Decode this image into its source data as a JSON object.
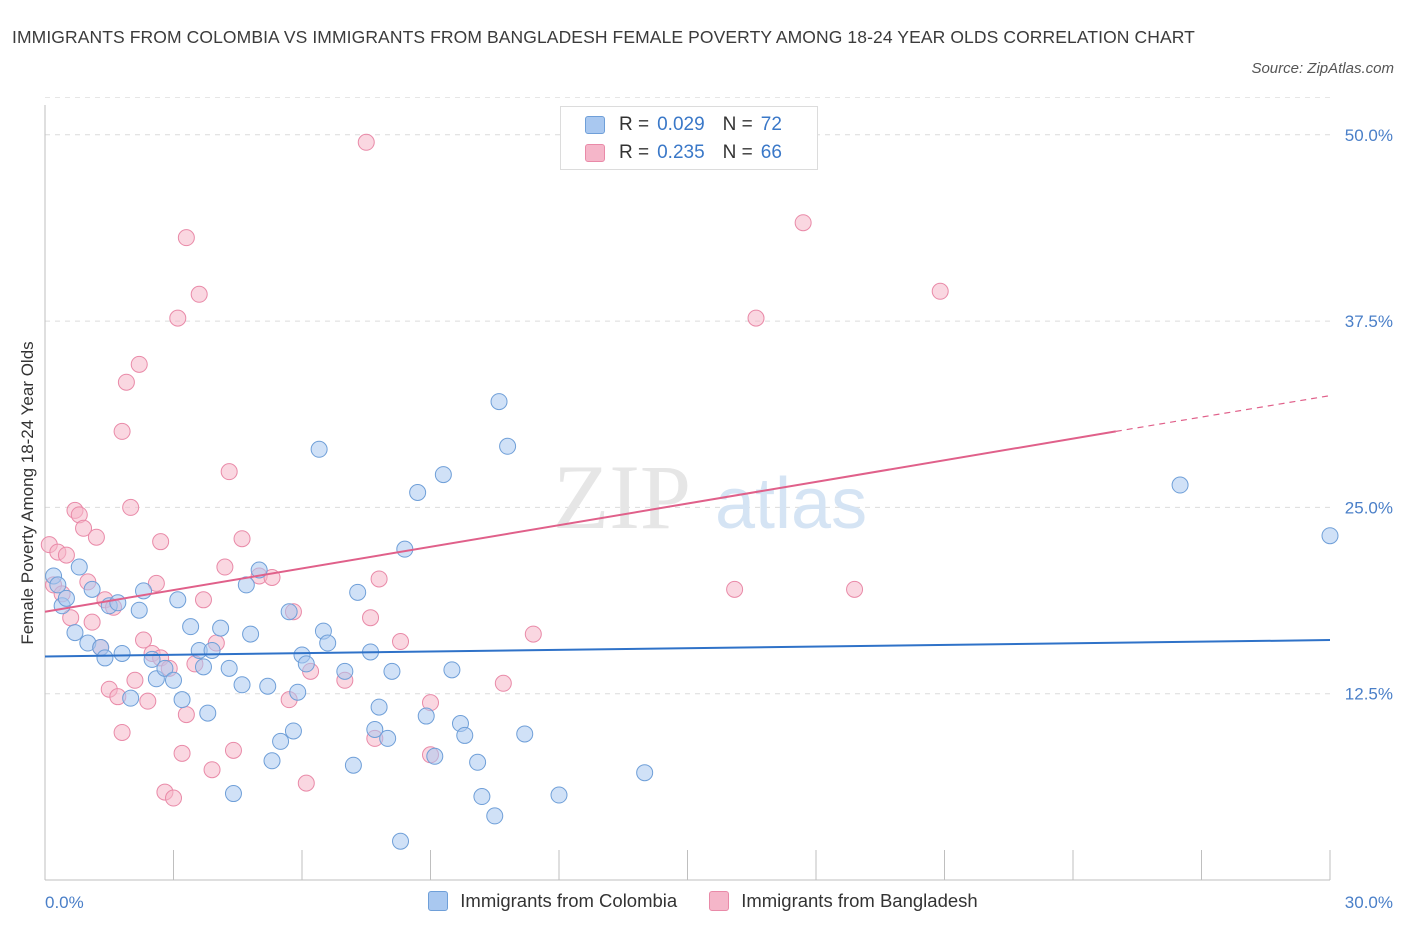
{
  "header": {
    "title": "IMMIGRANTS FROM COLOMBIA VS IMMIGRANTS FROM BANGLADESH FEMALE POVERTY AMONG 18-24 YEAR OLDS CORRELATION CHART",
    "source": "Source: ZipAtlas.com"
  },
  "watermark": {
    "zip": "ZIP",
    "atlas": "atlas"
  },
  "legend_top": {
    "rows": [
      {
        "r_label": "R =",
        "r_value": "0.029",
        "n_label": "N =",
        "n_value": "72",
        "color": "#a9c8f0"
      },
      {
        "r_label": "R =",
        "r_value": "0.235",
        "n_label": "N =",
        "n_value": "66",
        "color": "#f5b6c9"
      }
    ]
  },
  "bottom_legend": {
    "items": [
      {
        "label": "Immigrants from Colombia",
        "color": "#a9c8f0"
      },
      {
        "label": "Immigrants from Bangladesh",
        "color": "#f5b6c9"
      }
    ]
  },
  "colors": {
    "blue_fill": "#a9c8f0",
    "blue_stroke": "#6f9fd8",
    "blue_line": "#2f72c8",
    "pink_fill": "#f5b6c9",
    "pink_stroke": "#e98aa8",
    "pink_line": "#e0608a",
    "tick_text": "#4a7fc8"
  },
  "chart_data": {
    "type": "scatter",
    "title": "IMMIGRANTS FROM COLOMBIA VS IMMIGRANTS FROM BANGLADESH FEMALE POVERTY AMONG 18-24 YEAR OLDS CORRELATION CHART",
    "xlabel": "",
    "ylabel": "Female Poverty Among 18-24 Year Olds",
    "xlim": [
      0,
      30
    ],
    "ylim": [
      0,
      52
    ],
    "x_tick_labels": [
      "0.0%",
      "30.0%"
    ],
    "y_ticks": [
      12.5,
      25,
      37.5,
      50
    ],
    "y_tick_labels": [
      "12.5%",
      "25.0%",
      "37.5%",
      "50.0%"
    ],
    "grid": "horizontal dashed",
    "legend_position": "top-center",
    "series": [
      {
        "name": "Immigrants from Colombia",
        "r": 0.029,
        "n": 72,
        "trend": {
          "x": [
            0,
            30
          ],
          "y": [
            15.0,
            16.1
          ],
          "style": "solid"
        },
        "points": [
          [
            0.2,
            20.4
          ],
          [
            0.3,
            19.8
          ],
          [
            0.4,
            18.4
          ],
          [
            0.5,
            18.9
          ],
          [
            0.7,
            16.6
          ],
          [
            0.8,
            21.0
          ],
          [
            1.0,
            15.9
          ],
          [
            1.1,
            19.5
          ],
          [
            1.3,
            15.6
          ],
          [
            1.4,
            14.9
          ],
          [
            1.5,
            18.4
          ],
          [
            1.7,
            18.6
          ],
          [
            1.8,
            15.2
          ],
          [
            2.0,
            12.2
          ],
          [
            2.2,
            18.1
          ],
          [
            2.3,
            19.4
          ],
          [
            2.5,
            14.8
          ],
          [
            2.6,
            13.5
          ],
          [
            2.8,
            14.2
          ],
          [
            3.0,
            13.4
          ],
          [
            3.1,
            18.8
          ],
          [
            3.2,
            12.1
          ],
          [
            3.4,
            17.0
          ],
          [
            3.6,
            15.4
          ],
          [
            3.7,
            14.3
          ],
          [
            3.8,
            11.2
          ],
          [
            3.9,
            15.4
          ],
          [
            4.1,
            16.9
          ],
          [
            4.3,
            14.2
          ],
          [
            4.4,
            5.8
          ],
          [
            4.6,
            13.1
          ],
          [
            4.7,
            19.8
          ],
          [
            4.8,
            16.5
          ],
          [
            5.0,
            20.8
          ],
          [
            5.2,
            13.0
          ],
          [
            5.3,
            8.0
          ],
          [
            5.5,
            9.3
          ],
          [
            5.7,
            18.0
          ],
          [
            5.8,
            10.0
          ],
          [
            5.9,
            12.6
          ],
          [
            6.0,
            15.1
          ],
          [
            6.1,
            14.5
          ],
          [
            6.4,
            28.9
          ],
          [
            6.5,
            16.7
          ],
          [
            6.6,
            15.9
          ],
          [
            7.0,
            14.0
          ],
          [
            7.2,
            7.7
          ],
          [
            7.3,
            19.3
          ],
          [
            7.6,
            15.3
          ],
          [
            7.7,
            10.1
          ],
          [
            7.8,
            11.6
          ],
          [
            8.0,
            9.5
          ],
          [
            8.1,
            14.0
          ],
          [
            8.3,
            2.6
          ],
          [
            8.4,
            22.2
          ],
          [
            8.7,
            26.0
          ],
          [
            8.9,
            11.0
          ],
          [
            9.1,
            8.3
          ],
          [
            9.3,
            27.2
          ],
          [
            9.5,
            14.1
          ],
          [
            9.7,
            10.5
          ],
          [
            9.8,
            9.7
          ],
          [
            10.1,
            7.9
          ],
          [
            10.2,
            5.6
          ],
          [
            10.5,
            4.3
          ],
          [
            10.6,
            32.1
          ],
          [
            10.8,
            29.1
          ],
          [
            11.2,
            9.8
          ],
          [
            12.0,
            5.7
          ],
          [
            14.0,
            7.2
          ],
          [
            26.5,
            26.5
          ],
          [
            30.0,
            23.1
          ]
        ]
      },
      {
        "name": "Immigrants from Bangladesh",
        "r": 0.235,
        "n": 66,
        "trend": {
          "x": [
            0,
            25
          ],
          "y": [
            18.0,
            30.1
          ],
          "extended": {
            "x": [
              25,
              30
            ],
            "y": [
              30.1,
              32.5
            ]
          },
          "style": "solid then dashed"
        },
        "points": [
          [
            0.1,
            22.5
          ],
          [
            0.2,
            19.8
          ],
          [
            0.3,
            22.0
          ],
          [
            0.4,
            19.2
          ],
          [
            0.5,
            21.8
          ],
          [
            0.6,
            17.6
          ],
          [
            0.7,
            24.8
          ],
          [
            0.8,
            24.5
          ],
          [
            0.9,
            23.6
          ],
          [
            1.0,
            20.0
          ],
          [
            1.1,
            17.3
          ],
          [
            1.2,
            23.0
          ],
          [
            1.3,
            15.6
          ],
          [
            1.4,
            18.8
          ],
          [
            1.5,
            12.8
          ],
          [
            1.6,
            18.3
          ],
          [
            1.7,
            12.3
          ],
          [
            1.8,
            9.9
          ],
          [
            1.8,
            30.1
          ],
          [
            1.9,
            33.4
          ],
          [
            2.0,
            25.0
          ],
          [
            2.1,
            13.4
          ],
          [
            2.2,
            34.6
          ],
          [
            2.3,
            16.1
          ],
          [
            2.4,
            12.0
          ],
          [
            2.5,
            15.2
          ],
          [
            2.6,
            19.9
          ],
          [
            2.7,
            14.9
          ],
          [
            2.7,
            22.7
          ],
          [
            2.8,
            5.9
          ],
          [
            2.9,
            14.2
          ],
          [
            3.0,
            5.5
          ],
          [
            3.1,
            37.7
          ],
          [
            3.2,
            8.5
          ],
          [
            3.3,
            11.1
          ],
          [
            3.3,
            43.1
          ],
          [
            3.5,
            14.5
          ],
          [
            3.6,
            39.3
          ],
          [
            3.7,
            18.8
          ],
          [
            3.9,
            7.4
          ],
          [
            4.0,
            15.9
          ],
          [
            4.2,
            21.0
          ],
          [
            4.3,
            27.4
          ],
          [
            4.4,
            8.7
          ],
          [
            4.6,
            22.9
          ],
          [
            5.0,
            20.4
          ],
          [
            5.3,
            20.3
          ],
          [
            5.7,
            12.1
          ],
          [
            5.8,
            18.0
          ],
          [
            6.1,
            6.5
          ],
          [
            6.2,
            14.0
          ],
          [
            7.0,
            13.4
          ],
          [
            7.6,
            17.6
          ],
          [
            7.7,
            9.5
          ],
          [
            7.8,
            20.2
          ],
          [
            7.5,
            49.5
          ],
          [
            8.3,
            16.0
          ],
          [
            9.0,
            11.9
          ],
          [
            9.0,
            8.4
          ],
          [
            10.7,
            13.2
          ],
          [
            11.4,
            16.5
          ],
          [
            16.1,
            19.5
          ],
          [
            16.6,
            37.7
          ],
          [
            17.7,
            44.1
          ],
          [
            18.9,
            19.5
          ],
          [
            20.9,
            39.5
          ]
        ]
      }
    ]
  }
}
